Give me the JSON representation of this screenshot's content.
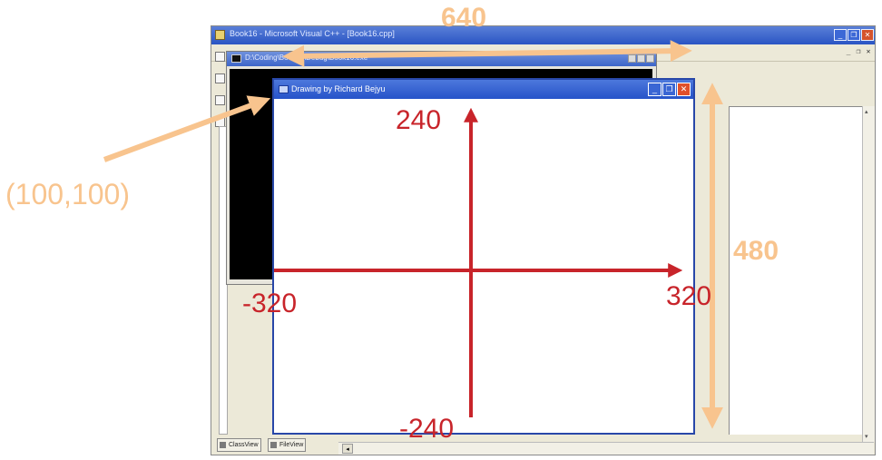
{
  "ide": {
    "title": "Book16 - Microsoft Visual C++ - [Book16.cpp]",
    "mdi_controls": [
      "_",
      "❐",
      "✕"
    ],
    "tabs": [
      {
        "label": "ClassView"
      },
      {
        "label": "FileView"
      }
    ],
    "hscroll_left": "◂"
  },
  "console": {
    "title": "D:\\Coding\\Book16\\Debug\\Book16.exe"
  },
  "glwin": {
    "title": "Drawing by Richard Bejyu"
  },
  "annotations": {
    "width_label": "640",
    "height_label": "480",
    "origin_label": "(100,100)"
  },
  "axes": {
    "y_top": "240",
    "y_bottom": "-240",
    "x_left": "-320",
    "x_right": "320"
  },
  "colors": {
    "annotation_orange": "#f8c48e",
    "axis_red": "#c8242a",
    "titlebar_blue": "#2653c9"
  }
}
